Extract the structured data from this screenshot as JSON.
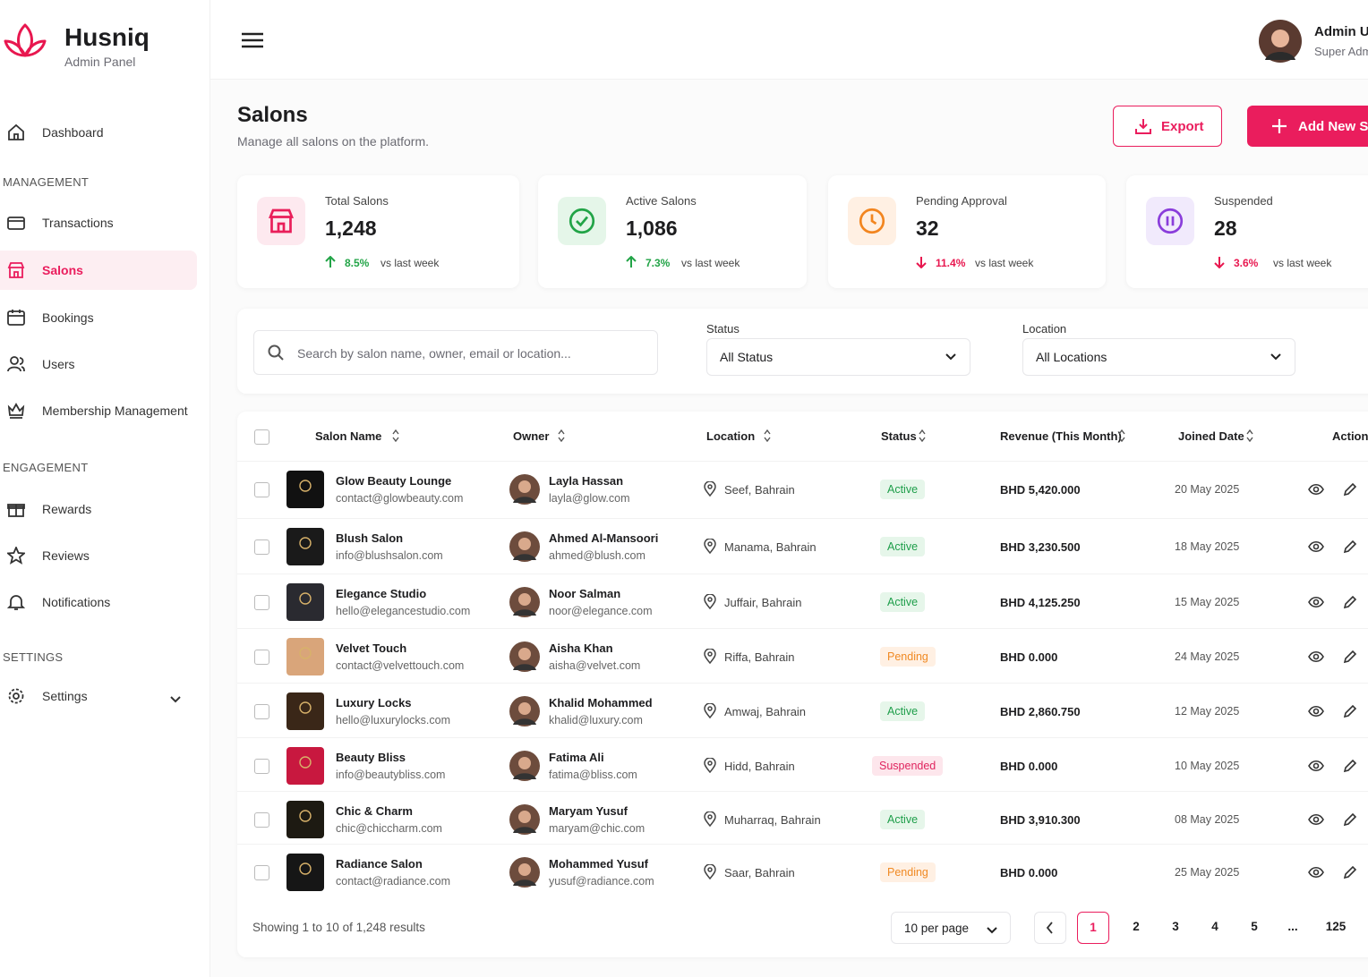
{
  "brand": {
    "name": "Husniq",
    "subtitle": "Admin Panel"
  },
  "user": {
    "name": "Admin U",
    "role": "Super Adm"
  },
  "sidebar": {
    "items": [
      {
        "label": "Dashboard",
        "icon": "home"
      },
      {
        "section": "MANAGEMENT"
      },
      {
        "label": "Transactions",
        "icon": "card"
      },
      {
        "label": "Salons",
        "icon": "store",
        "active": true
      },
      {
        "label": "Bookings",
        "icon": "calendar"
      },
      {
        "label": "Users",
        "icon": "users"
      },
      {
        "label": "Membership Management",
        "icon": "crown"
      },
      {
        "section": "ENGAGEMENT"
      },
      {
        "label": "Rewards",
        "icon": "gift"
      },
      {
        "label": "Reviews",
        "icon": "star"
      },
      {
        "label": "Notifications",
        "icon": "bell"
      },
      {
        "section": "SETTINGS"
      },
      {
        "label": "Settings",
        "icon": "gear",
        "expandable": true
      }
    ]
  },
  "page": {
    "title": "Salons",
    "subtitle": "Manage all salons on the platform.",
    "export_button": "Export",
    "add_button": "Add New S"
  },
  "stats": [
    {
      "label": "Total Salons",
      "value": "1,248",
      "change": "8.5%",
      "note": "vs last week",
      "trend": "up",
      "color": "#e91e5a",
      "bg": "#fde9ef",
      "icon": "store"
    },
    {
      "label": "Active Salons",
      "value": "1,086",
      "change": "7.3%",
      "note": "vs last week",
      "trend": "up",
      "color": "#22a447",
      "bg": "#e5f6e9",
      "icon": "check"
    },
    {
      "label": "Pending Approval",
      "value": "32",
      "change": "11.4%",
      "note": "vs last week",
      "trend": "down",
      "color": "#f2851f",
      "bg": "#fff0e3",
      "icon": "clock"
    },
    {
      "label": "Suspended",
      "value": "28",
      "change": "3.6%",
      "note": "vs last week",
      "trend": "down",
      "color": "#8a3ddb",
      "bg": "#f1eafc",
      "icon": "pause"
    }
  ],
  "filters": {
    "search_placeholder": "Search by salon name, owner, email or location...",
    "status_label": "Status",
    "status_value": "All Status",
    "location_label": "Location",
    "location_value": "All Locations"
  },
  "table": {
    "columns": [
      "Salon Name",
      "Owner",
      "Location",
      "Status",
      "Revenue (This Month)",
      "Joined Date",
      "Action"
    ],
    "rows": [
      {
        "name": "Glow Beauty Lounge",
        "email": "contact@glowbeauty.com",
        "owner": "Layla Hassan",
        "owner_email": "layla@glow.com",
        "location": "Seef, Bahrain",
        "status": "Active",
        "revenue": "BHD 5,420.000",
        "joined": "20 May 2025",
        "logo": "#111111"
      },
      {
        "name": "Blush Salon",
        "email": "info@blushsalon.com",
        "owner": "Ahmed Al-Mansoori",
        "owner_email": "ahmed@blush.com",
        "location": "Manama, Bahrain",
        "status": "Active",
        "revenue": "BHD 3,230.500",
        "joined": "18 May 2025",
        "logo": "#1a1a1a"
      },
      {
        "name": "Elegance Studio",
        "email": "hello@elegancestudio.com",
        "owner": "Noor Salman",
        "owner_email": "noor@elegance.com",
        "location": "Juffair, Bahrain",
        "status": "Active",
        "revenue": "BHD 4,125.250",
        "joined": "15 May 2025",
        "logo": "#2a2a30"
      },
      {
        "name": "Velvet Touch",
        "email": "contact@velvettouch.com",
        "owner": "Aisha Khan",
        "owner_email": "aisha@velvet.com",
        "location": "Riffa, Bahrain",
        "status": "Pending",
        "revenue": "BHD 0.000",
        "joined": "24 May 2025",
        "logo": "#d9a57a"
      },
      {
        "name": "Luxury Locks",
        "email": "hello@luxurylocks.com",
        "owner": "Khalid Mohammed",
        "owner_email": "khalid@luxury.com",
        "location": "Amwaj, Bahrain",
        "status": "Active",
        "revenue": "BHD 2,860.750",
        "joined": "12 May 2025",
        "logo": "#3a2718"
      },
      {
        "name": "Beauty Bliss",
        "email": "info@beautybliss.com",
        "owner": "Fatima Ali",
        "owner_email": "fatima@bliss.com",
        "location": "Hidd, Bahrain",
        "status": "Suspended",
        "revenue": "BHD 0.000",
        "joined": "10 May 2025",
        "logo": "#c8183f"
      },
      {
        "name": "Chic & Charm",
        "email": "chic@chiccharm.com",
        "owner": "Maryam Yusuf",
        "owner_email": "maryam@chic.com",
        "location": "Muharraq, Bahrain",
        "status": "Active",
        "revenue": "BHD 3,910.300",
        "joined": "08 May 2025",
        "logo": "#1d1a12"
      },
      {
        "name": "Radiance Salon",
        "email": "contact@radiance.com",
        "owner": "Mohammed Yusuf",
        "owner_email": "yusuf@radiance.com",
        "location": "Saar, Bahrain",
        "status": "Pending",
        "revenue": "BHD 0.000",
        "joined": "25 May 2025",
        "logo": "#161616"
      }
    ]
  },
  "footer": {
    "summary": "Showing 1 to 10 of 1,248 results",
    "per_page": "10 per page",
    "pages": [
      "1",
      "2",
      "3",
      "4",
      "5",
      "...",
      "125"
    ],
    "current_page": "1"
  }
}
